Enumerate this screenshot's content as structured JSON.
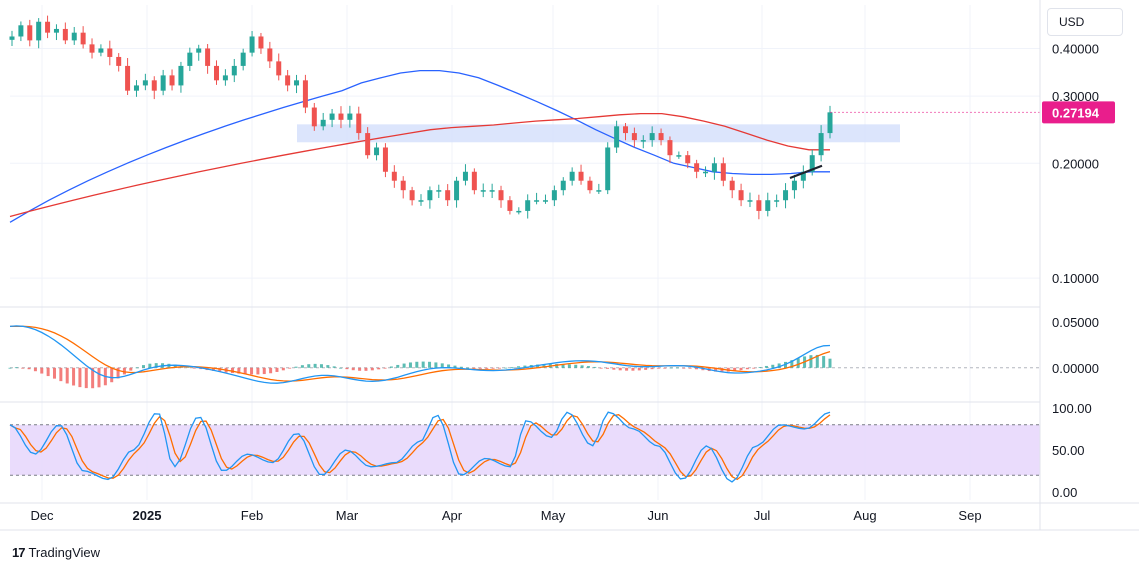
{
  "brand": {
    "logo_text": "17",
    "name": "TradingView"
  },
  "currency": "USD",
  "colors": {
    "candle_up": "#26a69a",
    "candle_down": "#ef5350",
    "candle_black": "#1e222d",
    "ma_blue": "#2962ff",
    "ma_red": "#e53935",
    "zone": "#d6e0fb",
    "price_tag": "#e91e8c",
    "macd_line": "#2196f3",
    "signal_line": "#ff6d00",
    "rsi_fill": "#e6d6fb",
    "rsi_line": "#2196f3",
    "rsi_signal": "#ff6d00"
  },
  "chart_data": [
    {
      "type": "candlestick",
      "name": "price",
      "last_price_label": "0.27194",
      "y_scale": "log",
      "ylim": [
        0.085,
        0.52
      ],
      "yticks": [
        "0.40000",
        "0.30000",
        "0.20000",
        "0.10000"
      ],
      "xticks": [
        "Dec",
        "2025",
        "Feb",
        "Mar",
        "Apr",
        "May",
        "Jun",
        "Jul",
        "Aug",
        "Sep"
      ],
      "support_zone": {
        "low": 0.227,
        "high": 0.253,
        "start": "Feb",
        "end": "Aug"
      },
      "close": [
        0.43,
        0.46,
        0.42,
        0.47,
        0.44,
        0.45,
        0.42,
        0.44,
        0.41,
        0.39,
        0.4,
        0.38,
        0.36,
        0.31,
        0.32,
        0.33,
        0.31,
        0.34,
        0.32,
        0.36,
        0.39,
        0.4,
        0.36,
        0.33,
        0.34,
        0.36,
        0.39,
        0.43,
        0.4,
        0.37,
        0.34,
        0.32,
        0.33,
        0.28,
        0.25,
        0.26,
        0.27,
        0.26,
        0.27,
        0.24,
        0.21,
        0.22,
        0.19,
        0.18,
        0.17,
        0.16,
        0.16,
        0.17,
        0.17,
        0.16,
        0.18,
        0.19,
        0.17,
        0.17,
        0.17,
        0.16,
        0.15,
        0.15,
        0.16,
        0.16,
        0.16,
        0.17,
        0.18,
        0.19,
        0.18,
        0.17,
        0.17,
        0.22,
        0.25,
        0.24,
        0.23,
        0.23,
        0.24,
        0.23,
        0.21,
        0.21,
        0.2,
        0.19,
        0.19,
        0.2,
        0.18,
        0.17,
        0.16,
        0.16,
        0.15,
        0.16,
        0.16,
        0.17,
        0.18,
        0.19,
        0.21,
        0.24,
        0.272
      ],
      "ma_blue": [
        0.14,
        0.15,
        0.16,
        0.17,
        0.18,
        0.19,
        0.2,
        0.21,
        0.22,
        0.23,
        0.24,
        0.25,
        0.26,
        0.27,
        0.28,
        0.29,
        0.3,
        0.31,
        0.325,
        0.335,
        0.345,
        0.35,
        0.35,
        0.345,
        0.335,
        0.32,
        0.305,
        0.29,
        0.275,
        0.26,
        0.245,
        0.232,
        0.22,
        0.21,
        0.2,
        0.195,
        0.19,
        0.188,
        0.187,
        0.187,
        0.188,
        0.19,
        0.19
      ],
      "ma_red": [
        0.145,
        0.15,
        0.155,
        0.16,
        0.165,
        0.17,
        0.175,
        0.18,
        0.185,
        0.19,
        0.195,
        0.2,
        0.205,
        0.21,
        0.215,
        0.22,
        0.225,
        0.23,
        0.235,
        0.24,
        0.245,
        0.248,
        0.25,
        0.252,
        0.255,
        0.258,
        0.26,
        0.262,
        0.265,
        0.268,
        0.27,
        0.27,
        0.265,
        0.258,
        0.25,
        0.24,
        0.23,
        0.222,
        0.217,
        0.217
      ]
    },
    {
      "type": "macd",
      "yticks": [
        "0.05000",
        "0.00000"
      ],
      "ylim": [
        -0.035,
        0.065
      ]
    },
    {
      "type": "rsi",
      "yticks": [
        "100.00",
        "50.00",
        "0.00"
      ],
      "ylim": [
        0,
        100
      ],
      "band": [
        20,
        80
      ]
    }
  ]
}
